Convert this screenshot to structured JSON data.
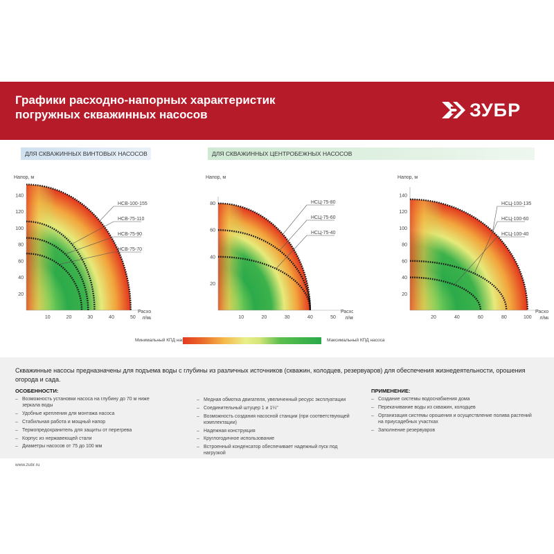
{
  "header": {
    "title_line1": "Графики расходно-напорных характеристик",
    "title_line2": "погружных скважинных насосов",
    "logo_text": "ЗУБР",
    "logo_icon": "zubr-arrow-logo-icon"
  },
  "sections": {
    "screw": "ДЛЯ СКВАЖИННЫХ ВИНТОВЫХ НАСОСОВ",
    "centrifugal": "ДЛЯ СКВАЖИННЫХ ЦЕНТРОБЕЖНЫХ НАСОСОВ"
  },
  "chart_data": [
    {
      "type": "line",
      "ylabel": "Напор, м",
      "xlabel_line1": "Расход,",
      "xlabel_line2": "л/мин",
      "xlim": [
        0,
        52
      ],
      "ylim": [
        0,
        150
      ],
      "x_ticks": [
        10,
        20,
        30,
        40,
        50
      ],
      "y_ticks": [
        20,
        40,
        60,
        80,
        100,
        120,
        140
      ],
      "background": "efficiency-gradient",
      "series": [
        {
          "name": "НСВ-100-155",
          "x": [
            0,
            49
          ],
          "y": [
            153,
            0
          ]
        },
        {
          "name": "НСВ-75-110",
          "x": [
            0,
            32
          ],
          "y": [
            108,
            0
          ]
        },
        {
          "name": "НСВ-75-90",
          "x": [
            0,
            29
          ],
          "y": [
            88,
            0
          ]
        },
        {
          "name": "НСВ-75-70",
          "x": [
            0,
            26
          ],
          "y": [
            69,
            0
          ]
        }
      ]
    },
    {
      "type": "line",
      "ylabel": "Напор, м",
      "xlabel_line1": "Расход,",
      "xlabel_line2": "л/мин",
      "xlim": [
        0,
        53
      ],
      "ylim": [
        0,
        85
      ],
      "x_ticks": [
        10,
        20,
        30,
        40,
        50
      ],
      "y_ticks": [
        20,
        40,
        60,
        80
      ],
      "background": "efficiency-gradient",
      "series": [
        {
          "name": "НСЦ-75-80",
          "x": [
            0,
            40
          ],
          "y": [
            80,
            0
          ]
        },
        {
          "name": "НСЦ-75-60",
          "x": [
            0,
            40
          ],
          "y": [
            60,
            0
          ]
        },
        {
          "name": "НСЦ-75-40",
          "x": [
            0,
            40
          ],
          "y": [
            40,
            0
          ]
        }
      ]
    },
    {
      "type": "line",
      "ylabel": "Напор, м",
      "xlabel_line1": "Расход,",
      "xlabel_line2": "л/мин",
      "xlim": [
        0,
        106
      ],
      "ylim": [
        0,
        150
      ],
      "x_ticks": [
        20,
        40,
        60,
        80,
        100
      ],
      "y_ticks": [
        20,
        40,
        60,
        80,
        100,
        120,
        140
      ],
      "background": "efficiency-gradient",
      "series": [
        {
          "name": "НСЦ-100-135",
          "x": [
            0,
            100
          ],
          "y": [
            135,
            0
          ]
        },
        {
          "name": "НСЦ-100-60",
          "x": [
            0,
            82
          ],
          "y": [
            60,
            0
          ]
        },
        {
          "name": "НСЦ-100-40",
          "x": [
            0,
            60
          ],
          "y": [
            40,
            0
          ]
        }
      ]
    }
  ],
  "legend": {
    "min_label": "Минимальный КПД насоса",
    "max_label": "Максимальный КПД насоса",
    "colors": [
      "#e23a1f",
      "#f4b94a",
      "#e9ee8a",
      "#2aaa48"
    ]
  },
  "info": {
    "intro": "Скважинные насосы предназначены для подъема воды с глубины из различных источников (скважин, колодцев, резервуаров) для обеспечения жизнедеятельности, орошения огорода и сада.",
    "features_title": "ОСОБЕННОСТИ:",
    "features": [
      "Возможность установки насоса на глубину до 70 м ниже зеркала воды",
      "Удобные крепления для монтажа насоса",
      "Стабильная работа и мощный напор",
      "Термопредохранитель для защиты от перегрева",
      "Корпус из нержавеющей стали",
      "Диаметры насосов от 75 до 100 мм"
    ],
    "features2": [
      "Медная обмотка двигателя, увеличенный ресурс эксплуатации",
      "Соединительный штуцер 1 и 1¼\"",
      "Возможность создания насосной станции (при соответствующей комплектации)",
      "Надежная конструкция",
      "Круглогодичное использование",
      "Встроенный конденсатор обеспечивает надежный пуск под нагрузкой"
    ],
    "usage_title": "ПРИМЕНЕНИЕ:",
    "usage": [
      "Создание системы водоснабжения дома",
      "Перекачивание воды из скважин, колодцев",
      "Организация системы орошения и осуществление полива растений на приусадебных участках",
      "Заполнение резервуаров"
    ]
  },
  "footer": {
    "site": "www.zubr.ru"
  }
}
